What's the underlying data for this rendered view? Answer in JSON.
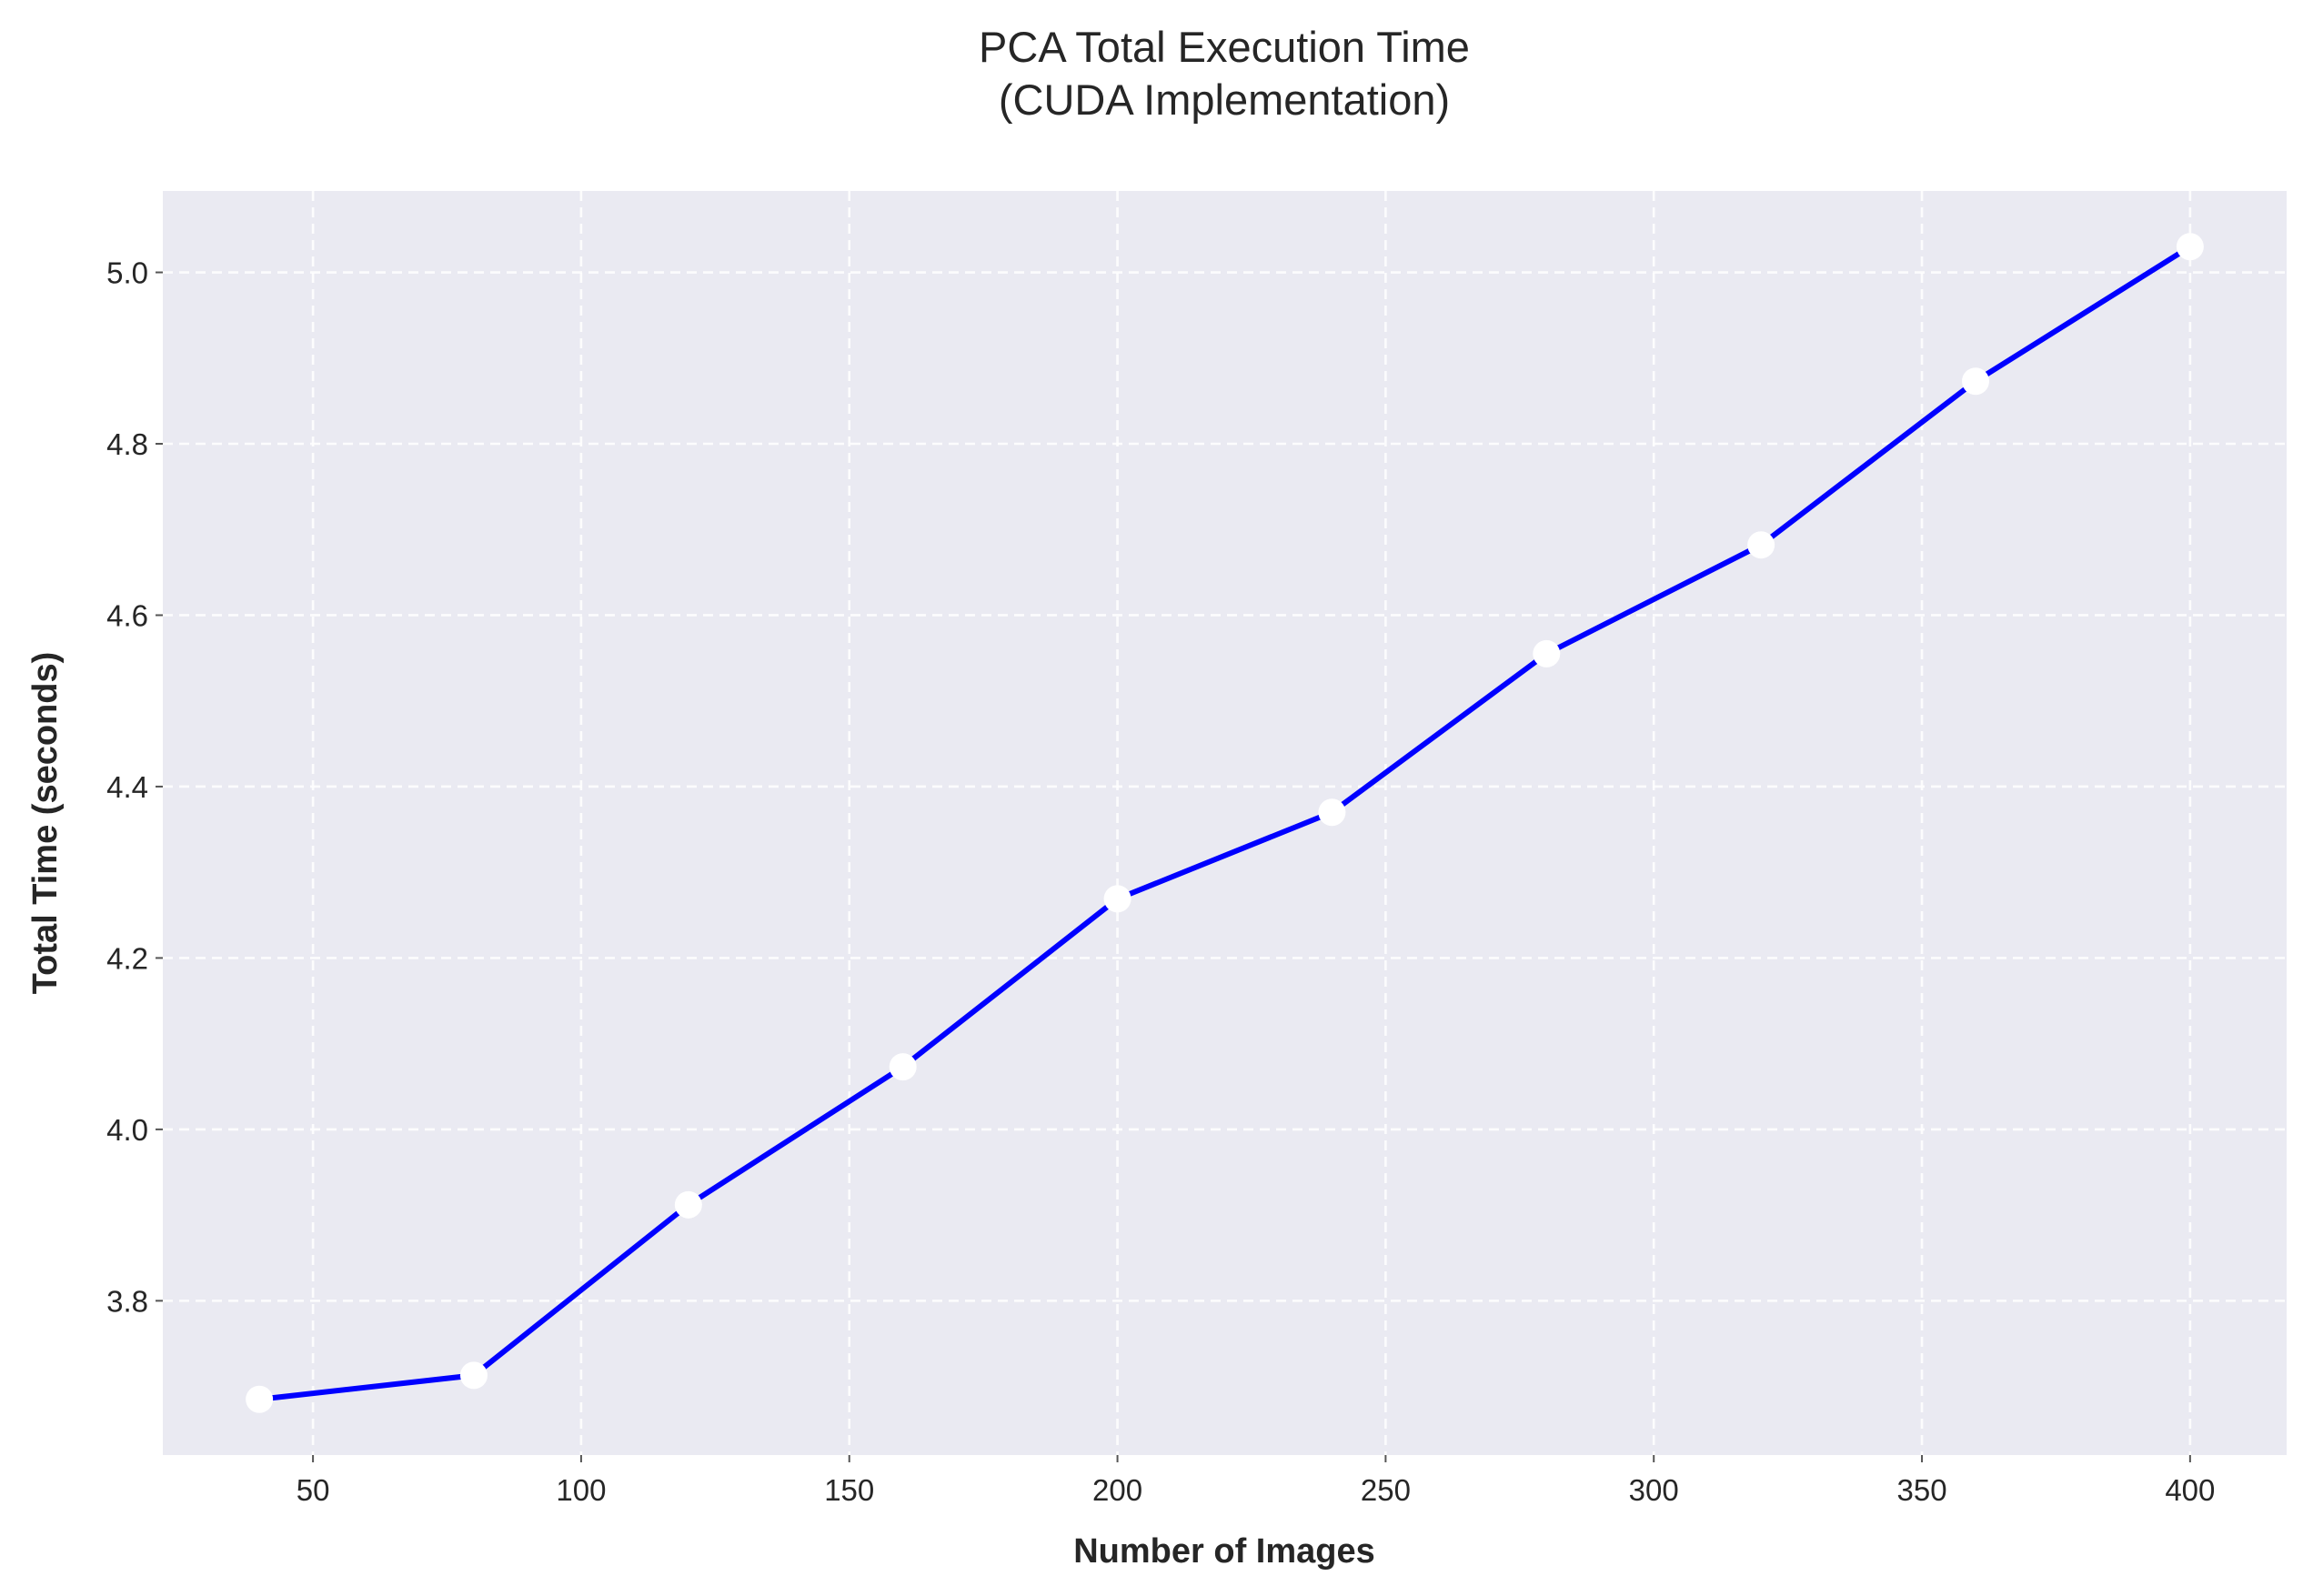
{
  "chart_data": {
    "type": "line",
    "title": "PCA Total Execution Time",
    "subtitle": "(CUDA Implementation)",
    "xlabel": "Number of Images",
    "ylabel": "Total Time (seconds)",
    "xlim": [
      22,
      418
    ],
    "ylim": [
      3.62,
      5.095
    ],
    "x_ticks": [
      50,
      100,
      150,
      200,
      250,
      300,
      350,
      400
    ],
    "x_tick_labels": [
      "50",
      "100",
      "150",
      "200",
      "250",
      "300",
      "350",
      "400"
    ],
    "y_ticks": [
      3.8,
      4.0,
      4.2,
      4.4,
      4.6,
      4.8,
      5.0
    ],
    "y_tick_labels": [
      "3.8",
      "4.0",
      "4.2",
      "4.4",
      "4.6",
      "4.8",
      "5.0"
    ],
    "grid": true,
    "series": [
      {
        "x": [
          40,
          80,
          120,
          160,
          200,
          240,
          280,
          320,
          360,
          400
        ],
        "values": [
          3.685,
          3.713,
          3.912,
          4.073,
          4.269,
          4.37,
          4.555,
          4.682,
          4.873,
          5.03
        ],
        "color": "#0000ff",
        "marker_color": "#ffffff"
      }
    ]
  }
}
